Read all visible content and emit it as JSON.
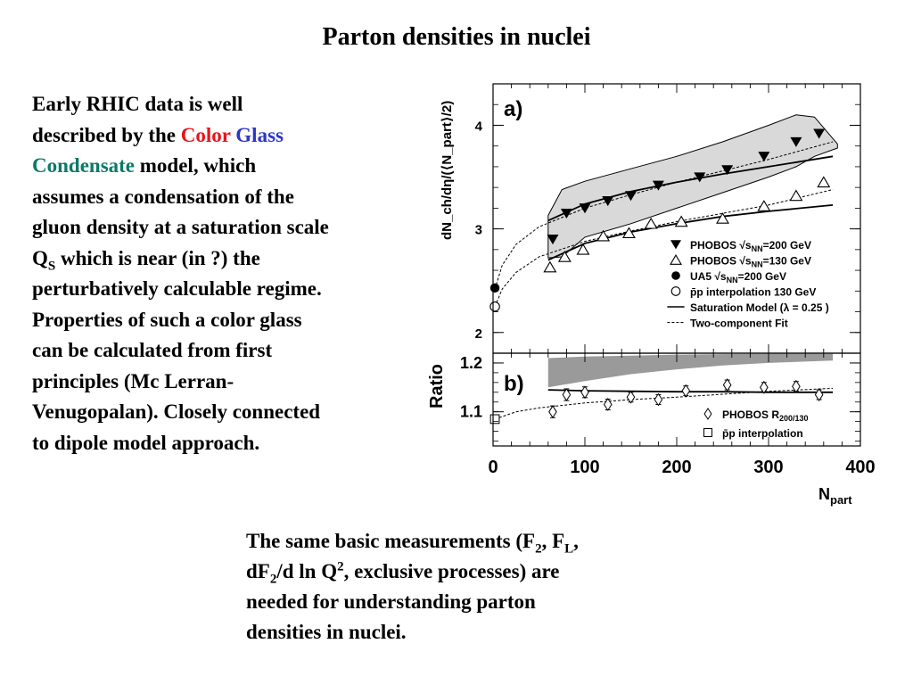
{
  "title": "Parton densities in nuclei",
  "left_text": {
    "l1": "Early RHIC data is well",
    "l2a": "described by the ",
    "l2_color": "Color",
    "l2_glass": "Glass",
    "l3_condensate": "Condensate",
    "l3b": " model, which",
    "l4": "assumes a condensation of the",
    "l5": "gluon density at a saturation scale",
    "l6_q": "Q",
    "l6_sub": "S",
    "l6b": " which is near (in ?) the",
    "l7": "perturbatively calculable regime.",
    "l8": "Properties of such a color glass",
    "l9": "can be calculated from first",
    "l10": "principles (Mc Lerran-",
    "l11": "Venugopalan). Closely connected",
    "l12": "to dipole model approach."
  },
  "bottom_text": {
    "a": "The same basic measurements (F",
    "a_sub1": "2",
    "b": ", F",
    "b_sub": "L",
    "c": ",",
    "d": "dF",
    "d_sub": "2",
    "e": "/d ln Q",
    "e_sup": "2",
    "f": ", exclusive processes) are",
    "g": "needed for understanding parton",
    "h": "densities in nuclei."
  },
  "colors": {
    "red": "#e8141b",
    "blue": "#2b36c8",
    "teal": "#0b7a68",
    "band": "#d9d9d9",
    "ratio_band": "#9a9a9a"
  },
  "chart_data": [
    {
      "type": "scatter",
      "panel_label": "a)",
      "ylabel": "dN_ch/dη/(⟨N_part⟩/2)",
      "xlim": [
        0,
        400
      ],
      "ylim": [
        1.8,
        4.4
      ],
      "yticks": [
        2,
        3,
        4
      ],
      "xtick_values": [
        0,
        100,
        200,
        300,
        400
      ],
      "series": [
        {
          "name": "PHOBOS √sNN=200 GeV",
          "marker": "filled-down-triangle",
          "x": [
            65,
            80,
            100,
            125,
            150,
            180,
            225,
            255,
            295,
            330,
            355
          ],
          "y": [
            2.9,
            3.15,
            3.2,
            3.27,
            3.32,
            3.42,
            3.5,
            3.57,
            3.7,
            3.84,
            3.92
          ]
        },
        {
          "name": "PHOBOS √sNN=130 GeV",
          "marker": "open-up-triangle",
          "x": [
            62,
            78,
            98,
            120,
            148,
            172,
            205,
            250,
            295,
            330,
            360
          ],
          "y": [
            2.63,
            2.73,
            2.8,
            2.93,
            2.96,
            3.05,
            3.07,
            3.1,
            3.22,
            3.32,
            3.45
          ]
        },
        {
          "name": "UA5 √sNN=200 GeV",
          "marker": "filled-circle",
          "x": [
            2
          ],
          "y": [
            2.43
          ]
        },
        {
          "name": "p̄p interpolation 130 GeV",
          "marker": "open-circle",
          "x": [
            2
          ],
          "y": [
            2.25
          ]
        }
      ],
      "curves": [
        {
          "name": "Saturation Model (λ = 0.25 )",
          "style": "solid",
          "x": [
            60,
            100,
            150,
            200,
            250,
            300,
            370
          ],
          "y": [
            3.08,
            3.24,
            3.36,
            3.45,
            3.53,
            3.6,
            3.7
          ]
        },
        {
          "name": "",
          "style": "solid",
          "x": [
            60,
            100,
            150,
            200,
            250,
            300,
            370
          ],
          "y": [
            2.7,
            2.86,
            2.97,
            3.05,
            3.12,
            3.17,
            3.23
          ]
        },
        {
          "name": "Two-component Fit",
          "style": "dashed",
          "x": [
            2,
            10,
            25,
            50,
            100,
            150,
            200,
            250,
            300,
            370
          ],
          "y": [
            2.42,
            2.65,
            2.85,
            3.02,
            3.2,
            3.33,
            3.45,
            3.56,
            3.67,
            3.84
          ]
        },
        {
          "name": "",
          "style": "dashed",
          "x": [
            2,
            10,
            25,
            50,
            100,
            150,
            200,
            250,
            300,
            370
          ],
          "y": [
            2.25,
            2.42,
            2.58,
            2.73,
            2.88,
            2.98,
            3.07,
            3.15,
            3.23,
            3.38
          ]
        }
      ],
      "band": {
        "x": [
          60,
          75,
          100,
          150,
          200,
          250,
          300,
          330,
          350,
          375
        ],
        "upper": [
          3.13,
          3.38,
          3.46,
          3.58,
          3.7,
          3.84,
          4.0,
          4.1,
          4.08,
          3.82
        ],
        "lower": [
          2.72,
          2.73,
          2.92,
          3.05,
          3.2,
          3.35,
          3.5,
          3.6,
          3.7,
          3.78
        ]
      },
      "legend": [
        {
          "marker": "filled-down-triangle",
          "text": "PHOBOS √s",
          "sub": "NN",
          "rest": "=200 GeV"
        },
        {
          "marker": "open-up-triangle",
          "text": "PHOBOS √s",
          "sub": "NN",
          "rest": "=130 GeV"
        },
        {
          "marker": "filled-circle",
          "text": "UA5 √s",
          "sub": "NN",
          "rest": "=200 GeV"
        },
        {
          "marker": "open-circle",
          "text": "p̄p interpolation 130 GeV",
          "sub": "",
          "rest": ""
        },
        {
          "marker": "solid-line",
          "text": "Saturation Model (λ = 0.25 )",
          "sub": "",
          "rest": ""
        },
        {
          "marker": "dashed-line",
          "text": "Two-component Fit",
          "sub": "",
          "rest": ""
        }
      ]
    },
    {
      "type": "scatter",
      "panel_label": "b)",
      "ylabel": "Ratio",
      "xlabel": "N",
      "xlabel_sub": "part",
      "xlim": [
        0,
        400
      ],
      "ylim": [
        1.03,
        1.22
      ],
      "yticks": [
        1.1,
        1.2
      ],
      "ytick_labels": [
        "1.1",
        "1.2"
      ],
      "xticks": [
        0,
        100,
        200,
        300,
        400
      ],
      "xtick_labels": [
        "0",
        "100",
        "200",
        "300",
        "400"
      ],
      "series": [
        {
          "name": "PHOBOS R 200/130",
          "marker": "open-diamond",
          "x": [
            65,
            80,
            100,
            125,
            150,
            180,
            210,
            255,
            295,
            330,
            355
          ],
          "y": [
            1.1,
            1.135,
            1.14,
            1.115,
            1.13,
            1.125,
            1.143,
            1.155,
            1.15,
            1.152,
            1.135
          ],
          "err": [
            0.012,
            0.012,
            0.011,
            0.011,
            0.01,
            0.01,
            0.01,
            0.01,
            0.01,
            0.01,
            0.01
          ]
        },
        {
          "name": "p̄p interpolation",
          "marker": "open-square",
          "x": [
            2
          ],
          "y": [
            1.085
          ]
        }
      ],
      "curves": [
        {
          "name": "",
          "style": "solid",
          "x": [
            60,
            100,
            150,
            200,
            250,
            300,
            370
          ],
          "y": [
            1.145,
            1.143,
            1.142,
            1.141,
            1.141,
            1.14,
            1.14
          ]
        },
        {
          "name": "",
          "style": "dashed",
          "x": [
            2,
            25,
            50,
            100,
            150,
            200,
            250,
            300,
            370
          ],
          "y": [
            1.085,
            1.1,
            1.108,
            1.118,
            1.125,
            1.13,
            1.136,
            1.142,
            1.148
          ]
        }
      ],
      "band": {
        "x": [
          60,
          100,
          150,
          200,
          250,
          300,
          370
        ],
        "upper": [
          1.21,
          1.213,
          1.215,
          1.217,
          1.218,
          1.219,
          1.22
        ],
        "lower": [
          1.15,
          1.163,
          1.177,
          1.187,
          1.195,
          1.2,
          1.205
        ]
      },
      "legend": [
        {
          "marker": "open-diamond",
          "text": "PHOBOS R",
          "sub": "200/130",
          "rest": ""
        },
        {
          "marker": "open-square",
          "text": "p̄p interpolation",
          "sub": "",
          "rest": ""
        }
      ]
    }
  ]
}
